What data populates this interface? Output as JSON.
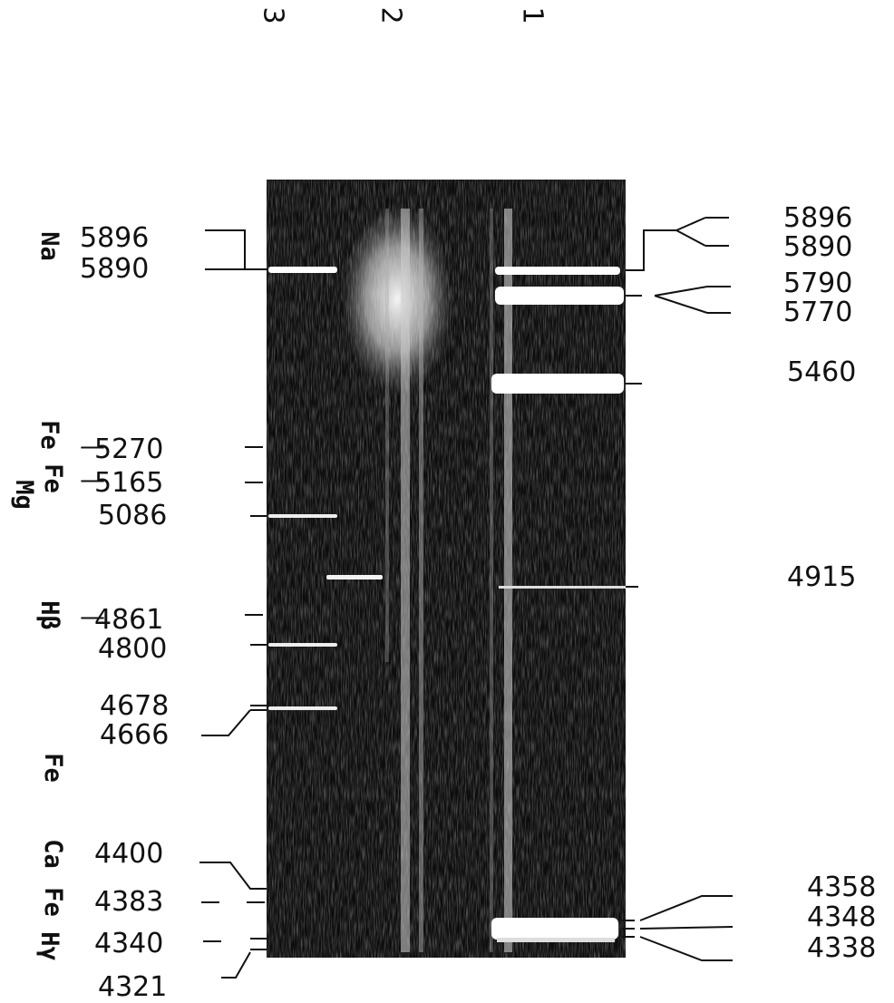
{
  "strip_numbers": [
    "3",
    "2",
    "1"
  ],
  "left": {
    "wavelengths": [
      "5896",
      "5890",
      "5270",
      "5165",
      "5086",
      "4861",
      "4800",
      "4678",
      "4666",
      "4400",
      "4383",
      "4340",
      "4321"
    ],
    "elements": [
      "Na",
      "Fe",
      "Fe",
      "Mg",
      "Hβ",
      "Fe",
      "Ca",
      "Fe",
      "Hγ"
    ]
  },
  "right": {
    "wavelengths": [
      "5896",
      "5890",
      "5790",
      "5770",
      "5460",
      "4915",
      "4358",
      "4348",
      "4338"
    ]
  },
  "colors": {
    "plate": "#0d0d0d",
    "ink": "#111111",
    "emission": "#ffffff"
  }
}
